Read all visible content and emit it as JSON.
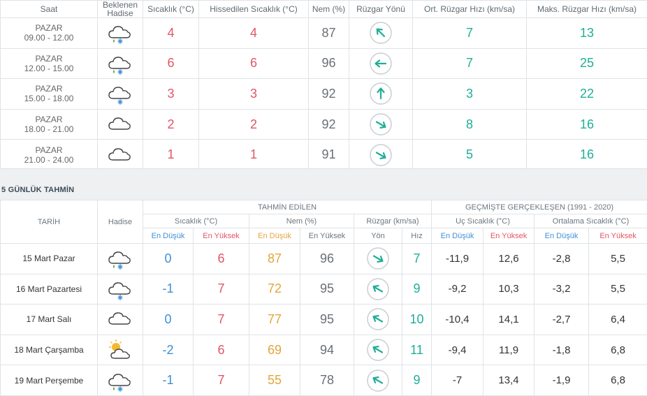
{
  "hourly": {
    "headers": {
      "saat": "Saat",
      "hadise": "Beklenen Hadise",
      "sicaklik": "Sıcaklık (°C)",
      "hissedilen": "Hissedilen Sıcaklık (°C)",
      "nem": "Nem (%)",
      "ruzgar_yonu": "Rüzgar Yönü",
      "ort_hiz": "Ort. Rüzgar Hızı (km/sa)",
      "maks_hiz": "Maks. Rüzgar Hızı (km/sa)"
    },
    "rows": [
      {
        "day": "PAZAR",
        "time": "09.00 - 12.00",
        "icon": "rain-snow-cloud-icon",
        "temp": "4",
        "feels": "4",
        "humidity": "87",
        "wind_dir_deg": 135,
        "avg_wind": "7",
        "max_wind": "13"
      },
      {
        "day": "PAZAR",
        "time": "12.00 - 15.00",
        "icon": "rain-snow-cloud-icon",
        "temp": "6",
        "feels": "6",
        "humidity": "96",
        "wind_dir_deg": 90,
        "avg_wind": "7",
        "max_wind": "25"
      },
      {
        "day": "PAZAR",
        "time": "15.00 - 18.00",
        "icon": "snow-cloud-icon",
        "temp": "3",
        "feels": "3",
        "humidity": "92",
        "wind_dir_deg": 180,
        "avg_wind": "3",
        "max_wind": "22"
      },
      {
        "day": "PAZAR",
        "time": "18.00 - 21.00",
        "icon": "cloud-icon",
        "temp": "2",
        "feels": "2",
        "humidity": "92",
        "wind_dir_deg": 300,
        "avg_wind": "8",
        "max_wind": "16"
      },
      {
        "day": "PAZAR",
        "time": "21.00 - 24.00",
        "icon": "cloud-icon",
        "temp": "1",
        "feels": "1",
        "humidity": "91",
        "wind_dir_deg": 300,
        "avg_wind": "5",
        "max_wind": "16"
      }
    ]
  },
  "daily": {
    "section_title": "5 GÜNLÜK TAHMİN",
    "headers": {
      "tarih": "TARİH",
      "hadise": "Hadise",
      "tahmin_edilen": "TAHMİN EDİLEN",
      "gecmiste": "GEÇMİŞTE GERÇEKLEŞEN (1991 - 2020)",
      "sicaklik": "Sıcaklık (°C)",
      "nem": "Nem (%)",
      "ruzgar": "Rüzgar (km/sa)",
      "uc_sicaklik": "Uç Sıcaklık (°C)",
      "ort_sicaklik": "Ortalama Sıcaklık (°C)",
      "en_dusuk": "En Düşük",
      "en_yuksek": "En Yüksek",
      "yon": "Yön",
      "hiz": "Hız"
    },
    "rows": [
      {
        "date": "15 Mart Pazar",
        "icon": "rain-snow-cloud-icon",
        "tmin": "0",
        "tmax": "6",
        "hmin": "87",
        "hmax": "96",
        "wind_dir_deg": 300,
        "wind_speed": "7",
        "ext_min": "-11,9",
        "ext_max": "12,6",
        "avg_min": "-2,8",
        "avg_max": "5,5"
      },
      {
        "date": "16 Mart Pazartesi",
        "icon": "snow-cloud-icon",
        "tmin": "-1",
        "tmax": "7",
        "hmin": "72",
        "hmax": "95",
        "wind_dir_deg": 120,
        "wind_speed": "9",
        "ext_min": "-9,2",
        "ext_max": "10,3",
        "avg_min": "-3,2",
        "avg_max": "5,5"
      },
      {
        "date": "17 Mart Salı",
        "icon": "cloud-icon",
        "tmin": "0",
        "tmax": "7",
        "hmin": "77",
        "hmax": "95",
        "wind_dir_deg": 120,
        "wind_speed": "10",
        "ext_min": "-10,4",
        "ext_max": "14,1",
        "avg_min": "-2,7",
        "avg_max": "6,4"
      },
      {
        "date": "18 Mart Çarşamba",
        "icon": "partly-sunny-cloud-icon",
        "tmin": "-2",
        "tmax": "6",
        "hmin": "69",
        "hmax": "94",
        "wind_dir_deg": 120,
        "wind_speed": "11",
        "ext_min": "-9,4",
        "ext_max": "11,9",
        "avg_min": "-1,8",
        "avg_max": "6,8"
      },
      {
        "date": "19 Mart Perşembe",
        "icon": "rain-snow-cloud-icon",
        "tmin": "-1",
        "tmax": "7",
        "hmin": "55",
        "hmax": "78",
        "wind_dir_deg": 120,
        "wind_speed": "9",
        "ext_min": "-7",
        "ext_max": "13,4",
        "avg_min": "-1,9",
        "avg_max": "6,8"
      }
    ]
  },
  "colors": {
    "teal": "#1fae98",
    "red": "#e25566",
    "blue": "#3f8fd6",
    "orange": "#e5a53c"
  }
}
